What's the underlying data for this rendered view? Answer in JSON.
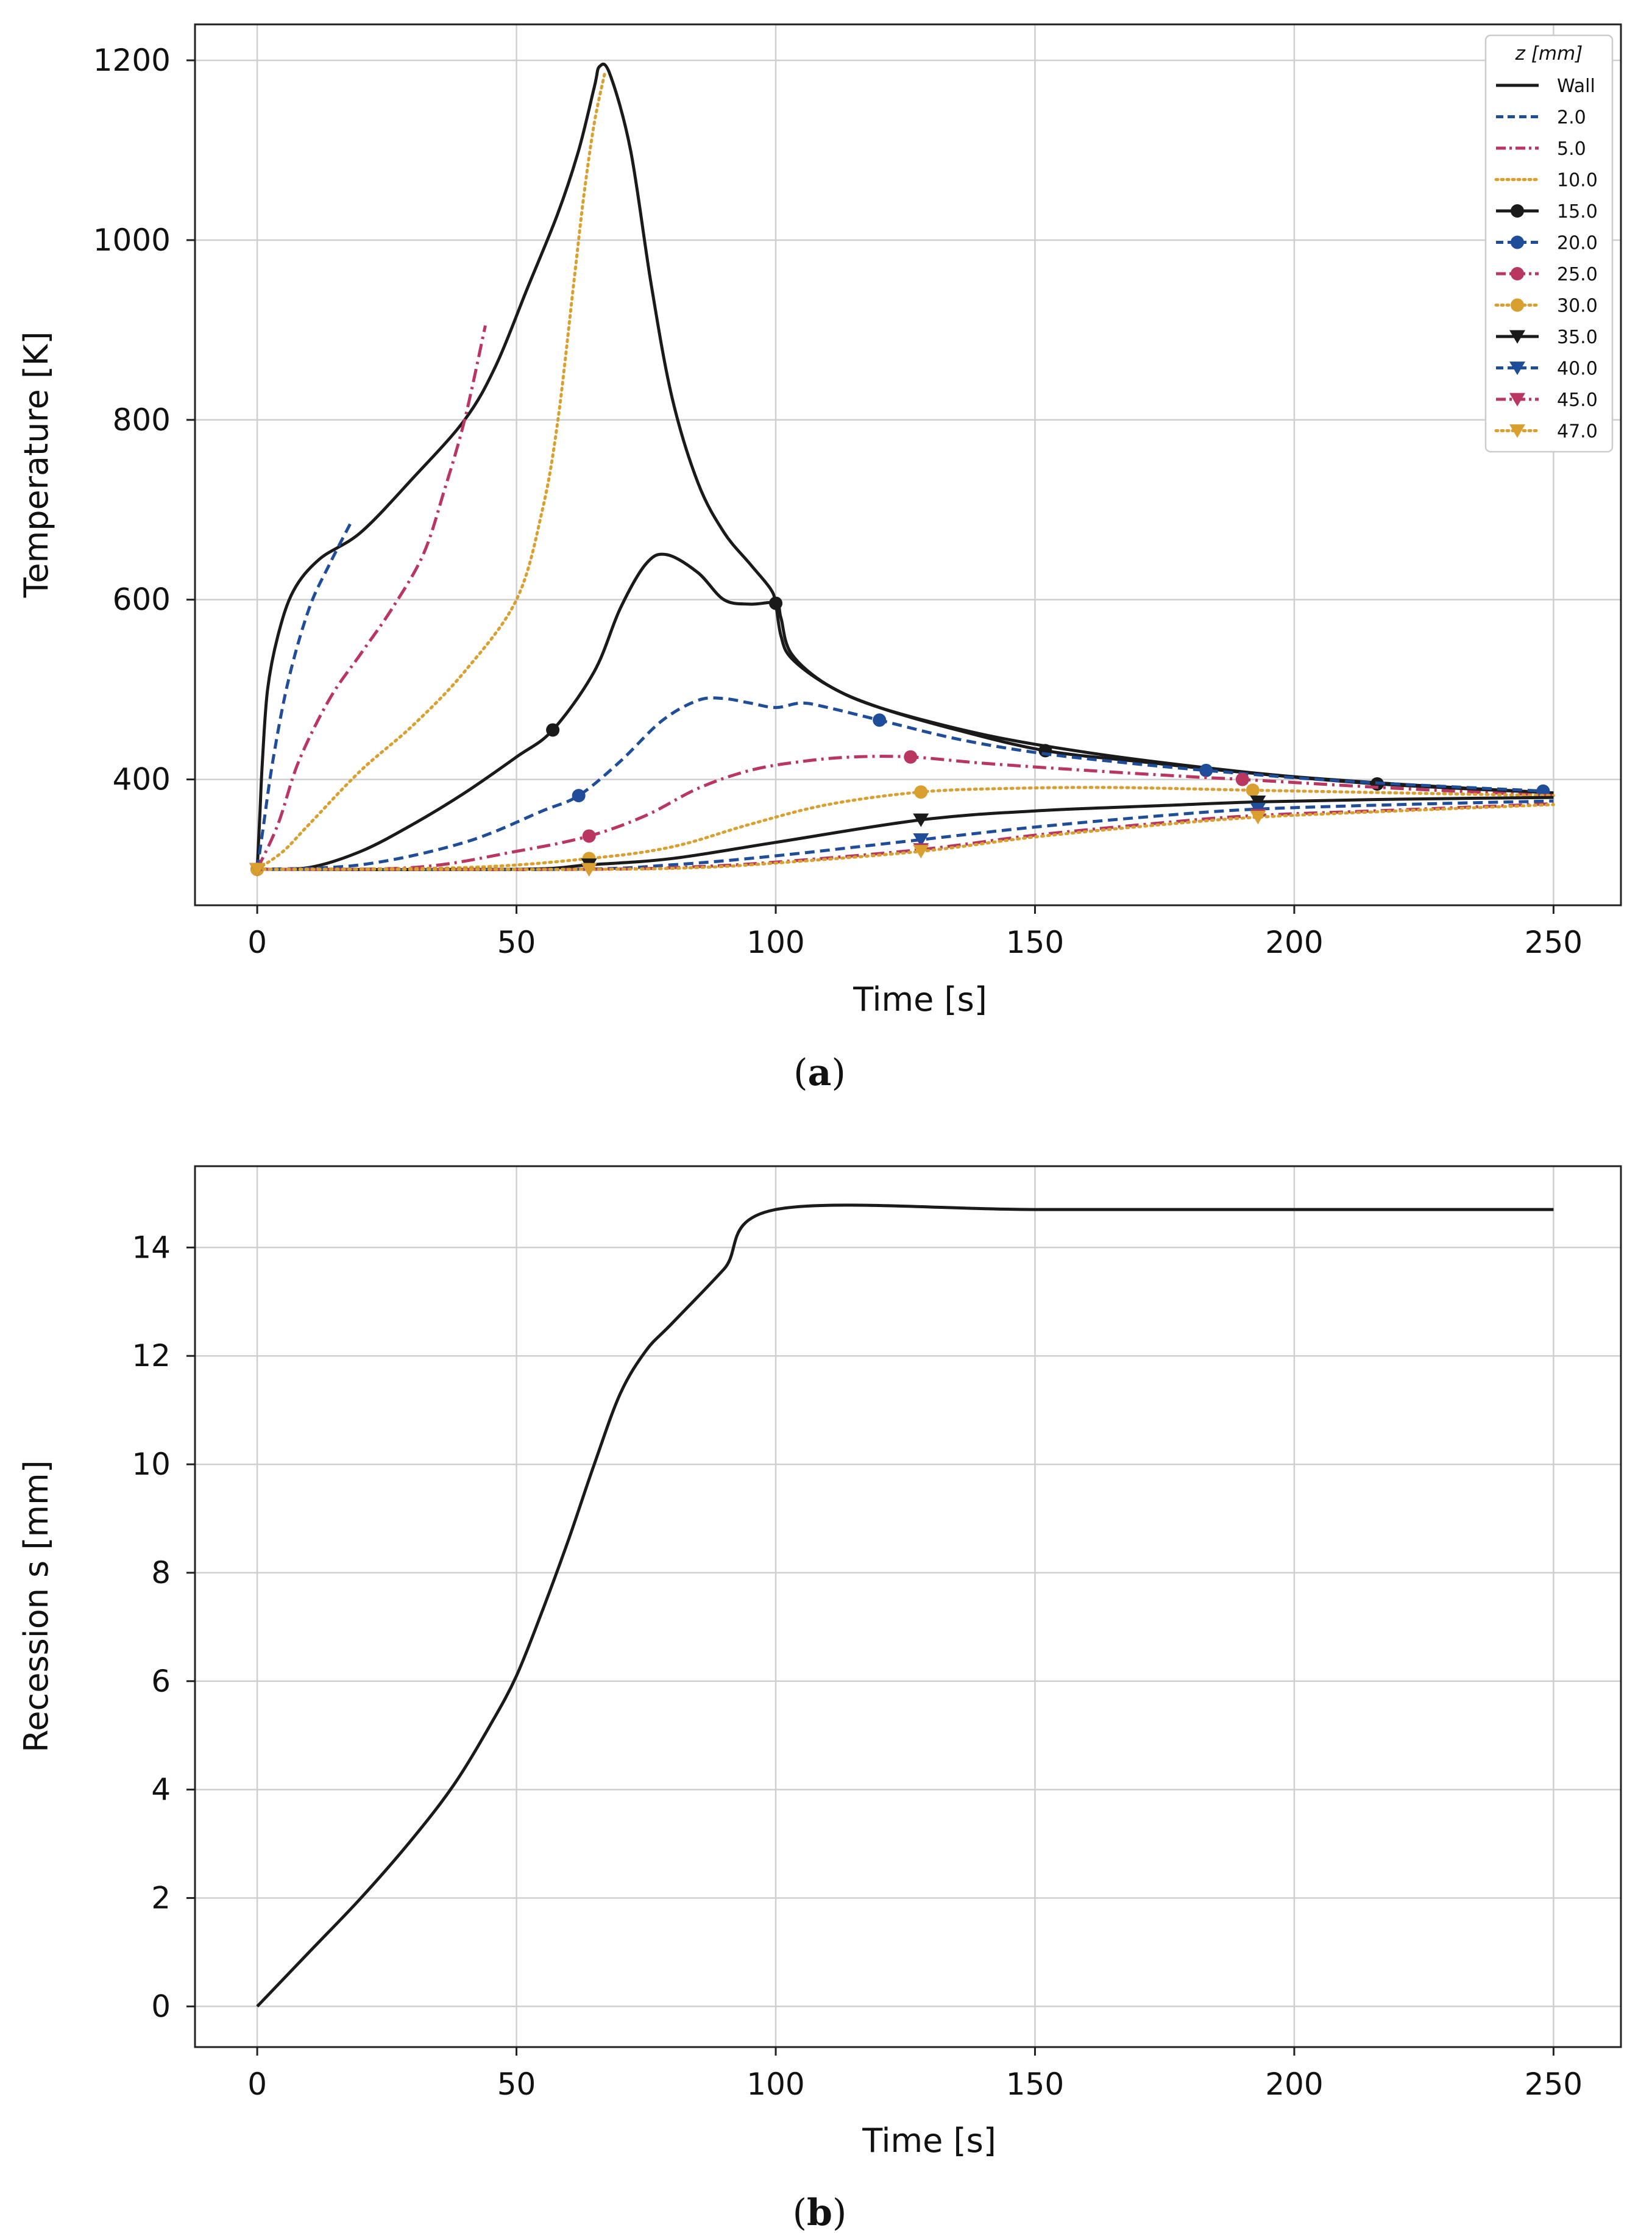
{
  "chart_data": [
    {
      "type": "line",
      "panel_label": "a",
      "title": "",
      "xlabel": "Time [s]",
      "ylabel": "Temperature [K]",
      "xlim": [
        -12,
        263
      ],
      "ylim": [
        260,
        1240
      ],
      "xticks": [
        0,
        50,
        100,
        150,
        200,
        250
      ],
      "yticks": [
        400,
        600,
        800,
        1000,
        1200
      ],
      "grid": true,
      "legend": {
        "title": "z [mm]",
        "placement": "top-right"
      },
      "series": [
        {
          "name": "Wall",
          "color": "#1a1a1a",
          "dash": "solid",
          "marker": "none",
          "points": [
            [
              0,
              300
            ],
            [
              0.5,
              360
            ],
            [
              1,
              420
            ],
            [
              2,
              500
            ],
            [
              4,
              560
            ],
            [
              7,
              610
            ],
            [
              12,
              645
            ],
            [
              20,
              675
            ],
            [
              30,
              735
            ],
            [
              40,
              800
            ],
            [
              46,
              860
            ],
            [
              52,
              945
            ],
            [
              58,
              1030
            ],
            [
              62,
              1100
            ],
            [
              65,
              1170
            ],
            [
              66,
              1193
            ],
            [
              68,
              1185
            ],
            [
              72,
              1100
            ],
            [
              76,
              950
            ],
            [
              80,
              825
            ],
            [
              85,
              730
            ],
            [
              90,
              675
            ],
            [
              95,
              640
            ],
            [
              99,
              612
            ],
            [
              100,
              595
            ],
            [
              101,
              560
            ],
            [
              103,
              535
            ],
            [
              110,
              505
            ],
            [
              120,
              480
            ],
            [
              140,
              450
            ],
            [
              160,
              430
            ],
            [
              180,
              415
            ],
            [
              200,
              403
            ],
            [
              225,
              393
            ],
            [
              250,
              385
            ]
          ]
        },
        {
          "name": "2.0",
          "color": "#1f4d99",
          "dash": "dashed",
          "marker": "none",
          "points": [
            [
              0,
              300
            ],
            [
              1,
              340
            ],
            [
              3,
              420
            ],
            [
              6,
              510
            ],
            [
              10,
              590
            ],
            [
              14,
              640
            ],
            [
              18,
              685
            ]
          ]
        },
        {
          "name": "5.0",
          "color": "#b8365f",
          "dash": "dashdot",
          "marker": "none",
          "points": [
            [
              0,
              300
            ],
            [
              4,
              350
            ],
            [
              8,
              420
            ],
            [
              14,
              490
            ],
            [
              20,
              540
            ],
            [
              26,
              590
            ],
            [
              32,
              650
            ],
            [
              36,
              720
            ],
            [
              40,
              800
            ],
            [
              44,
              905
            ]
          ]
        },
        {
          "name": "10.0",
          "color": "#d9a030",
          "dash": "dotted",
          "marker": "none",
          "points": [
            [
              0,
              300
            ],
            [
              5,
              320
            ],
            [
              10,
              350
            ],
            [
              20,
              410
            ],
            [
              30,
              460
            ],
            [
              40,
              520
            ],
            [
              50,
              600
            ],
            [
              55,
              700
            ],
            [
              58,
              800
            ],
            [
              61,
              950
            ],
            [
              63,
              1050
            ],
            [
              65,
              1130
            ],
            [
              67,
              1185
            ]
          ]
        },
        {
          "name": "15.0",
          "color": "#1a1a1a",
          "dash": "solid",
          "marker": "circle",
          "points": [
            [
              0,
              300
            ],
            [
              10,
              302
            ],
            [
              20,
              320
            ],
            [
              30,
              350
            ],
            [
              40,
              385
            ],
            [
              50,
              425
            ],
            [
              57,
              455
            ],
            [
              65,
              520
            ],
            [
              70,
              590
            ],
            [
              75,
              640
            ],
            [
              79,
              650
            ],
            [
              85,
              630
            ],
            [
              90,
              600
            ],
            [
              95,
              595
            ],
            [
              100,
              596
            ],
            [
              101,
              580
            ],
            [
              103,
              540
            ],
            [
              110,
              505
            ],
            [
              120,
              480
            ],
            [
              135,
              455
            ],
            [
              152,
              432
            ],
            [
              170,
              420
            ],
            [
              190,
              408
            ],
            [
              216,
              395
            ],
            [
              250,
              385
            ]
          ],
          "markers": [
            [
              0,
              300
            ],
            [
              57,
              455
            ],
            [
              100,
              596
            ],
            [
              152,
              432
            ],
            [
              216,
              395
            ]
          ]
        },
        {
          "name": "20.0",
          "color": "#1f4d99",
          "dash": "dashed",
          "marker": "circle",
          "points": [
            [
              0,
              300
            ],
            [
              20,
              305
            ],
            [
              40,
              330
            ],
            [
              55,
              365
            ],
            [
              62,
              382
            ],
            [
              70,
              420
            ],
            [
              78,
              465
            ],
            [
              85,
              488
            ],
            [
              90,
              490
            ],
            [
              95,
              485
            ],
            [
              100,
              480
            ],
            [
              105,
              485
            ],
            [
              110,
              480
            ],
            [
              120,
              466
            ],
            [
              135,
              445
            ],
            [
              150,
              430
            ],
            [
              165,
              420
            ],
            [
              183,
              410
            ],
            [
              210,
              398
            ],
            [
              248,
              387
            ]
          ],
          "markers": [
            [
              0,
              300
            ],
            [
              62,
              382
            ],
            [
              120,
              466
            ],
            [
              183,
              410
            ],
            [
              248,
              387
            ]
          ]
        },
        {
          "name": "25.0",
          "color": "#b8365f",
          "dash": "dashdot",
          "marker": "circle",
          "points": [
            [
              0,
              300
            ],
            [
              30,
              302
            ],
            [
              50,
              320
            ],
            [
              64,
              337
            ],
            [
              75,
              360
            ],
            [
              85,
              390
            ],
            [
              95,
              410
            ],
            [
              105,
              420
            ],
            [
              115,
              425
            ],
            [
              126,
              425
            ],
            [
              140,
              418
            ],
            [
              160,
              410
            ],
            [
              180,
              403
            ],
            [
              190,
              400
            ],
            [
              220,
              390
            ],
            [
              250,
              382
            ]
          ],
          "markers": [
            [
              0,
              300
            ],
            [
              64,
              337
            ],
            [
              126,
              425
            ],
            [
              190,
              400
            ]
          ]
        },
        {
          "name": "30.0",
          "color": "#d9a030",
          "dash": "dotted",
          "marker": "circle",
          "points": [
            [
              0,
              300
            ],
            [
              40,
              302
            ],
            [
              64,
              312
            ],
            [
              80,
              325
            ],
            [
              95,
              350
            ],
            [
              110,
              372
            ],
            [
              128,
              386
            ],
            [
              145,
              390
            ],
            [
              165,
              391
            ],
            [
              192,
              388
            ],
            [
              220,
              385
            ],
            [
              250,
              382
            ]
          ],
          "markers": [
            [
              0,
              300
            ],
            [
              64,
              312
            ],
            [
              128,
              386
            ],
            [
              192,
              388
            ]
          ]
        },
        {
          "name": "35.0",
          "color": "#1a1a1a",
          "dash": "solid",
          "marker": "triangle",
          "points": [
            [
              0,
              300
            ],
            [
              50,
              300
            ],
            [
              64,
              305
            ],
            [
              80,
              312
            ],
            [
              100,
              330
            ],
            [
              128,
              355
            ],
            [
              150,
              365
            ],
            [
              175,
              371
            ],
            [
              193,
              375
            ],
            [
              220,
              378
            ],
            [
              250,
              380
            ]
          ],
          "markers": [
            [
              0,
              300
            ],
            [
              64,
              305
            ],
            [
              128,
              355
            ],
            [
              193,
              375
            ]
          ]
        },
        {
          "name": "40.0",
          "color": "#1f4d99",
          "dash": "dashed",
          "marker": "triangle",
          "points": [
            [
              0,
              300
            ],
            [
              60,
              300
            ],
            [
              80,
              305
            ],
            [
              100,
              315
            ],
            [
              128,
              333
            ],
            [
              150,
              347
            ],
            [
              175,
              360
            ],
            [
              193,
              367
            ],
            [
              220,
              372
            ],
            [
              250,
              376
            ]
          ],
          "markers": [
            [
              0,
              300
            ],
            [
              64,
              300
            ],
            [
              128,
              333
            ],
            [
              193,
              367
            ]
          ]
        },
        {
          "name": "45.0",
          "color": "#b8365f",
          "dash": "dashdot",
          "marker": "triangle",
          "points": [
            [
              0,
              300
            ],
            [
              64,
              300
            ],
            [
              85,
              303
            ],
            [
              100,
              308
            ],
            [
              128,
              322
            ],
            [
              150,
              338
            ],
            [
              175,
              352
            ],
            [
              193,
              360
            ],
            [
              220,
              366
            ],
            [
              250,
              373
            ]
          ],
          "markers": [
            [
              0,
              300
            ],
            [
              64,
              300
            ],
            [
              128,
              322
            ],
            [
              193,
              360
            ]
          ]
        },
        {
          "name": "47.0",
          "color": "#d9a030",
          "dash": "dotted",
          "marker": "triangle",
          "points": [
            [
              0,
              300
            ],
            [
              64,
              300
            ],
            [
              85,
              302
            ],
            [
              100,
              307
            ],
            [
              128,
              320
            ],
            [
              150,
              336
            ],
            [
              175,
              350
            ],
            [
              193,
              358
            ],
            [
              220,
              365
            ],
            [
              250,
              372
            ]
          ],
          "markers": [
            [
              0,
              300
            ],
            [
              64,
              300
            ],
            [
              128,
              320
            ],
            [
              193,
              358
            ]
          ]
        }
      ]
    },
    {
      "type": "line",
      "panel_label": "b",
      "title": "",
      "xlabel": "Time [s]",
      "ylabel": "Recession s [mm]",
      "xlim": [
        -12,
        263
      ],
      "ylim": [
        -0.75,
        15.5
      ],
      "xticks": [
        0,
        50,
        100,
        150,
        200,
        250
      ],
      "yticks": [
        0,
        2,
        4,
        6,
        8,
        10,
        12,
        14
      ],
      "grid": true,
      "series": [
        {
          "name": "Recession",
          "color": "#1a1a1a",
          "dash": "solid",
          "marker": "none",
          "points": [
            [
              0,
              0
            ],
            [
              10,
              1.0
            ],
            [
              20,
              2.0
            ],
            [
              30,
              3.1
            ],
            [
              38,
              4.1
            ],
            [
              45,
              5.2
            ],
            [
              50,
              6.1
            ],
            [
              55,
              7.3
            ],
            [
              60,
              8.6
            ],
            [
              65,
              10.0
            ],
            [
              70,
              11.3
            ],
            [
              75,
              12.1
            ],
            [
              80,
              12.6
            ],
            [
              90,
              13.6
            ],
            [
              100,
              14.7
            ],
            [
              150,
              14.7
            ],
            [
              200,
              14.7
            ],
            [
              250,
              14.7
            ]
          ]
        }
      ]
    }
  ]
}
